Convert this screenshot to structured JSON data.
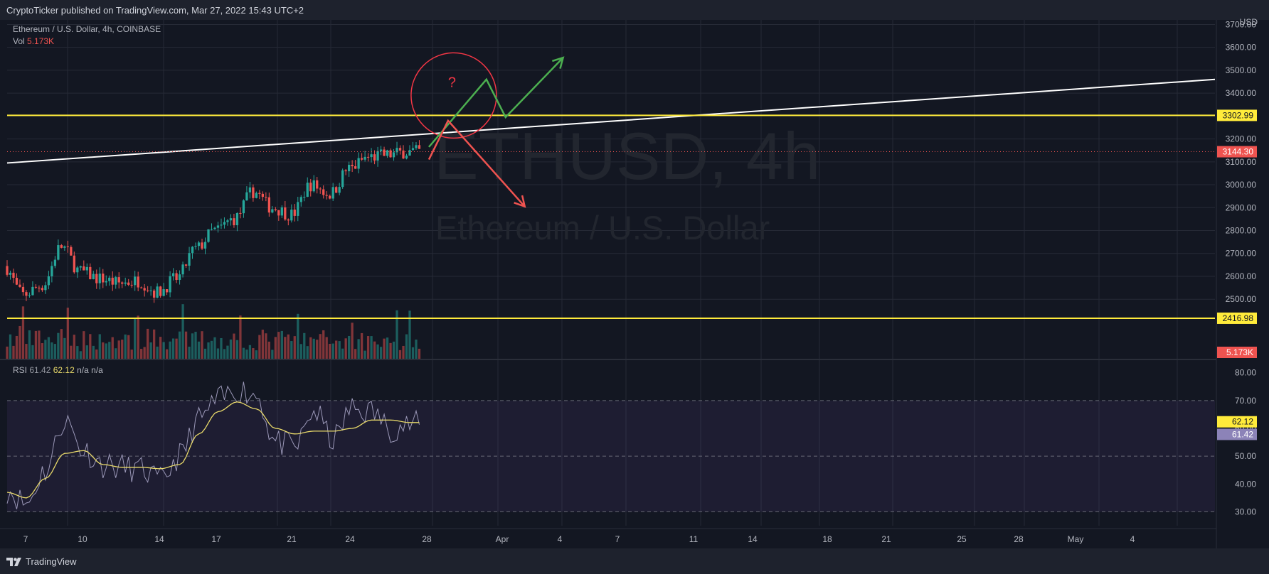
{
  "header": {
    "published_text": "CryptoTicker published on TradingView.com, Mar 27, 2022 15:43 UTC+2"
  },
  "footer": {
    "brand": "TradingView",
    "brand_icon": "tradingview-logo-icon"
  },
  "legend": {
    "symbol": "Ethereum / U.S. Dollar, 4h, COINBASE",
    "vol_label": "Vol",
    "vol_value": "5.173K",
    "rsi_label": "RSI",
    "rsi_value": "61.42",
    "rsi_ma_value": "62.12",
    "na1": "n/a",
    "na2": "n/a"
  },
  "watermark": {
    "ticker": "ETHUSD, 4h",
    "name": "Ethereum / U.S. Dollar"
  },
  "colors": {
    "background": "#131722",
    "up": "#26a69a",
    "down": "#ef5350",
    "level_line": "#ffeb3b",
    "trend_line": "#ffffff",
    "rsi_line": "#9b98b8",
    "rsi_ma": "#e8d96a"
  },
  "chart_data": {
    "type": "candlestick",
    "currency_label": "USD",
    "price_axis": {
      "ylim": [
        2240,
        3720
      ],
      "tick_labels": [
        "3700.00",
        "3600.00",
        "3500.00",
        "3400.00",
        "3300.00",
        "3200.00",
        "3100.00",
        "3000.00",
        "2900.00",
        "2800.00",
        "2700.00",
        "2600.00",
        "2500.00"
      ]
    },
    "x_axis": {
      "tick_labels": [
        "7",
        "10",
        "14",
        "17",
        "21",
        "24",
        "28",
        "Apr",
        "4",
        "7",
        "11",
        "14",
        "18",
        "21",
        "25",
        "28",
        "May",
        "4"
      ]
    },
    "price_labels": [
      {
        "value": 3302.99,
        "text": "3302.99",
        "kind": "level"
      },
      {
        "value": 3144.3,
        "text": "3144.30",
        "kind": "last"
      },
      {
        "value": 2416.98,
        "text": "2416.98",
        "kind": "level"
      }
    ],
    "volume_label": "5.173K",
    "horizontal_levels": [
      3302.99,
      2416.98
    ],
    "last_price": 3144.3,
    "price_points": [
      [
        "2022-03-06",
        2645
      ],
      [
        "2022-03-07",
        2520
      ],
      [
        "2022-03-08",
        2560
      ],
      [
        "2022-03-09",
        2730
      ],
      [
        "2022-03-10",
        2620
      ],
      [
        "2022-03-11",
        2590
      ],
      [
        "2022-03-12",
        2570
      ],
      [
        "2022-03-13",
        2580
      ],
      [
        "2022-03-14",
        2530
      ],
      [
        "2022-03-15",
        2590
      ],
      [
        "2022-03-16",
        2720
      ],
      [
        "2022-03-17",
        2800
      ],
      [
        "2022-03-18",
        2850
      ],
      [
        "2022-03-19",
        2970
      ],
      [
        "2022-03-20",
        2900
      ],
      [
        "2022-03-21",
        2870
      ],
      [
        "2022-03-22",
        3000
      ],
      [
        "2022-03-23",
        2960
      ],
      [
        "2022-03-24",
        3070
      ],
      [
        "2022-03-25",
        3120
      ],
      [
        "2022-03-26",
        3130
      ],
      [
        "2022-03-27",
        3144
      ]
    ],
    "rsi": {
      "label": "RSI",
      "ylim": [
        25,
        83
      ],
      "tick_labels": [
        "80.00",
        "70.00",
        "60.00",
        "50.00",
        "40.00",
        "30.00"
      ],
      "band": [
        30,
        70
      ],
      "midline": 50,
      "value": 61.42,
      "ma_value": 62.12,
      "value_label": "61.42",
      "ma_label": "62.12",
      "points": [
        [
          "2022-03-06",
          38
        ],
        [
          "2022-03-07",
          33
        ],
        [
          "2022-03-08",
          45
        ],
        [
          "2022-03-09",
          63
        ],
        [
          "2022-03-10",
          52
        ],
        [
          "2022-03-11",
          47
        ],
        [
          "2022-03-12",
          46
        ],
        [
          "2022-03-13",
          45
        ],
        [
          "2022-03-14",
          41
        ],
        [
          "2022-03-15",
          50
        ],
        [
          "2022-03-16",
          63
        ],
        [
          "2022-03-17",
          70
        ],
        [
          "2022-03-18",
          74
        ],
        [
          "2022-03-19",
          72
        ],
        [
          "2022-03-20",
          55
        ],
        [
          "2022-03-21",
          53
        ],
        [
          "2022-03-22",
          66
        ],
        [
          "2022-03-23",
          56
        ],
        [
          "2022-03-24",
          67
        ],
        [
          "2022-03-25",
          66
        ],
        [
          "2022-03-26",
          60
        ],
        [
          "2022-03-27",
          61.4
        ]
      ],
      "ma_points": [
        [
          "2022-03-06",
          37
        ],
        [
          "2022-03-07",
          35
        ],
        [
          "2022-03-08",
          42
        ],
        [
          "2022-03-09",
          51
        ],
        [
          "2022-03-10",
          52
        ],
        [
          "2022-03-11",
          47
        ],
        [
          "2022-03-12",
          46
        ],
        [
          "2022-03-13",
          46
        ],
        [
          "2022-03-14",
          45.5
        ],
        [
          "2022-03-15",
          47
        ],
        [
          "2022-03-16",
          58
        ],
        [
          "2022-03-17",
          66
        ],
        [
          "2022-03-18",
          69.5
        ],
        [
          "2022-03-19",
          67
        ],
        [
          "2022-03-20",
          60
        ],
        [
          "2022-03-21",
          58
        ],
        [
          "2022-03-22",
          59
        ],
        [
          "2022-03-23",
          59
        ],
        [
          "2022-03-24",
          60
        ],
        [
          "2022-03-25",
          63
        ],
        [
          "2022-03-26",
          63
        ],
        [
          "2022-03-27",
          62.1
        ]
      ]
    },
    "drawings": {
      "trendline": {
        "from": [
          "2022-03-06",
          3095
        ],
        "to": [
          "2022-05-08",
          3460
        ]
      },
      "question_mark": "?",
      "circle_center": [
        "2022-03-29",
        3390
      ],
      "green_path": [
        [
          "2022-03-28",
          3165
        ],
        [
          "2022-03-31",
          3460
        ],
        [
          "2022-04-01",
          3295
        ],
        [
          "2022-04-04",
          3555
        ]
      ],
      "red_path": [
        [
          "2022-03-28",
          3110
        ],
        [
          "2022-03-29",
          3280
        ],
        [
          "2022-04-02",
          2905
        ]
      ]
    }
  }
}
